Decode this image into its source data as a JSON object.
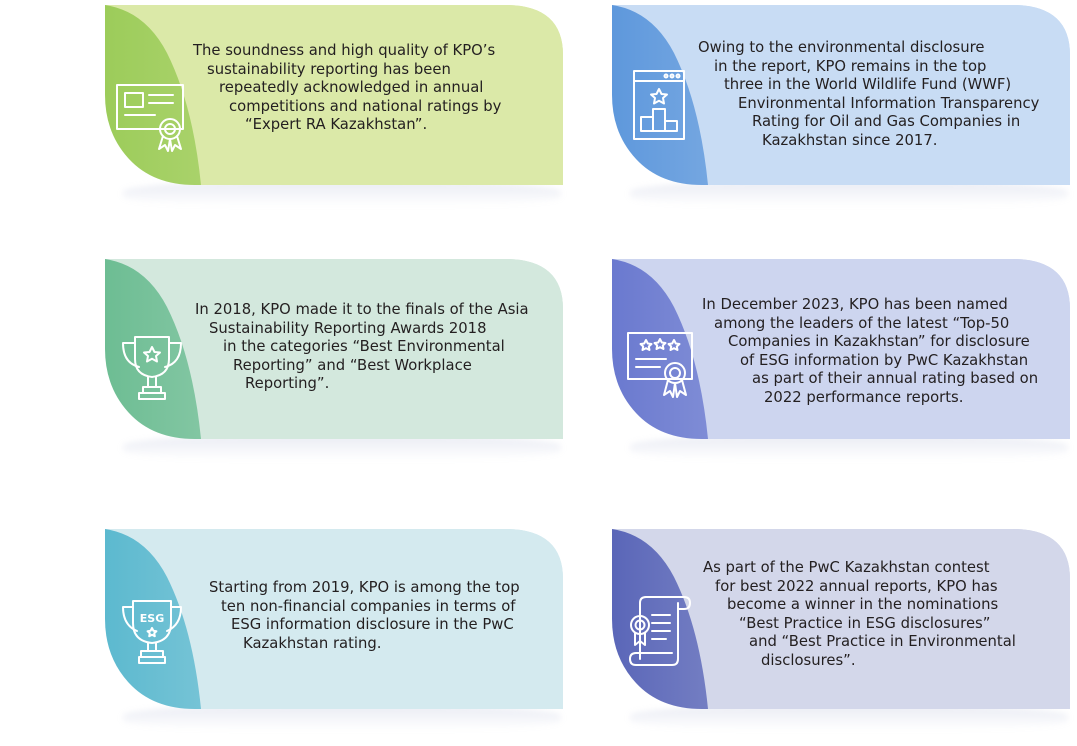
{
  "cards": [
    {
      "id": "card-expert-ra",
      "colors": [
        "#9ccc5a",
        "#dbe9a8"
      ],
      "icon": "certificate-icon",
      "lines": [
        "The soundness and high quality of KPO’s",
        "sustainability reporting has been",
        "repeatedly acknowledged in annual",
        "competitions and national ratings by",
        "“Expert RA Kazakhstan”."
      ]
    },
    {
      "id": "card-wwf",
      "colors": [
        "#5e98dc",
        "#c8dcf4"
      ],
      "icon": "ranking-podium-icon",
      "lines": [
        "Owing to the environmental disclosure",
        "in the report, KPO remains in the top",
        "three in the World Wildlife Fund (WWF)",
        "Environmental Information Transparency",
        "Rating for Oil and Gas Companies in",
        "Kazakhstan since 2017."
      ]
    },
    {
      "id": "card-asia-awards",
      "colors": [
        "#6dbd93",
        "#d3e8dd"
      ],
      "icon": "trophy-icon",
      "lines": [
        "In 2018, KPO made it to the finals of the Asia",
        "Sustainability Reporting Awards 2018",
        "in the categories “Best Environmental",
        "Reporting” and “Best Workplace",
        "Reporting”."
      ]
    },
    {
      "id": "card-top50",
      "colors": [
        "#6a79cf",
        "#cdd5ef"
      ],
      "icon": "rated-certificate-icon",
      "lines": [
        "In December 2023, KPO has been named",
        "among the leaders of the latest “Top-50",
        "Companies in Kazakhstan” for disclosure",
        "of ESG information by PwC Kazakhstan",
        "as part of their annual rating based on",
        "2022 performance reports."
      ]
    },
    {
      "id": "card-esg-top10",
      "colors": [
        "#5cb9cf",
        "#d4eaef"
      ],
      "icon": "esg-trophy-icon",
      "icon_text": "ESG",
      "lines": [
        "Starting from 2019, KPO is among the top",
        "ten non-financial companies in terms of",
        "ESG information disclosure in the PwC",
        "Kazakhstan rating."
      ]
    },
    {
      "id": "card-pwc-contest",
      "colors": [
        "#5a66b8",
        "#d3d7ea"
      ],
      "icon": "diploma-scroll-icon",
      "lines": [
        "As part of the PwC Kazakhstan contest",
        "for best 2022 annual reports, KPO has",
        "become a winner in the nominations",
        "“Best Practice in ESG disclosures”",
        "and “Best Practice in Environmental",
        "disclosures”."
      ]
    }
  ]
}
